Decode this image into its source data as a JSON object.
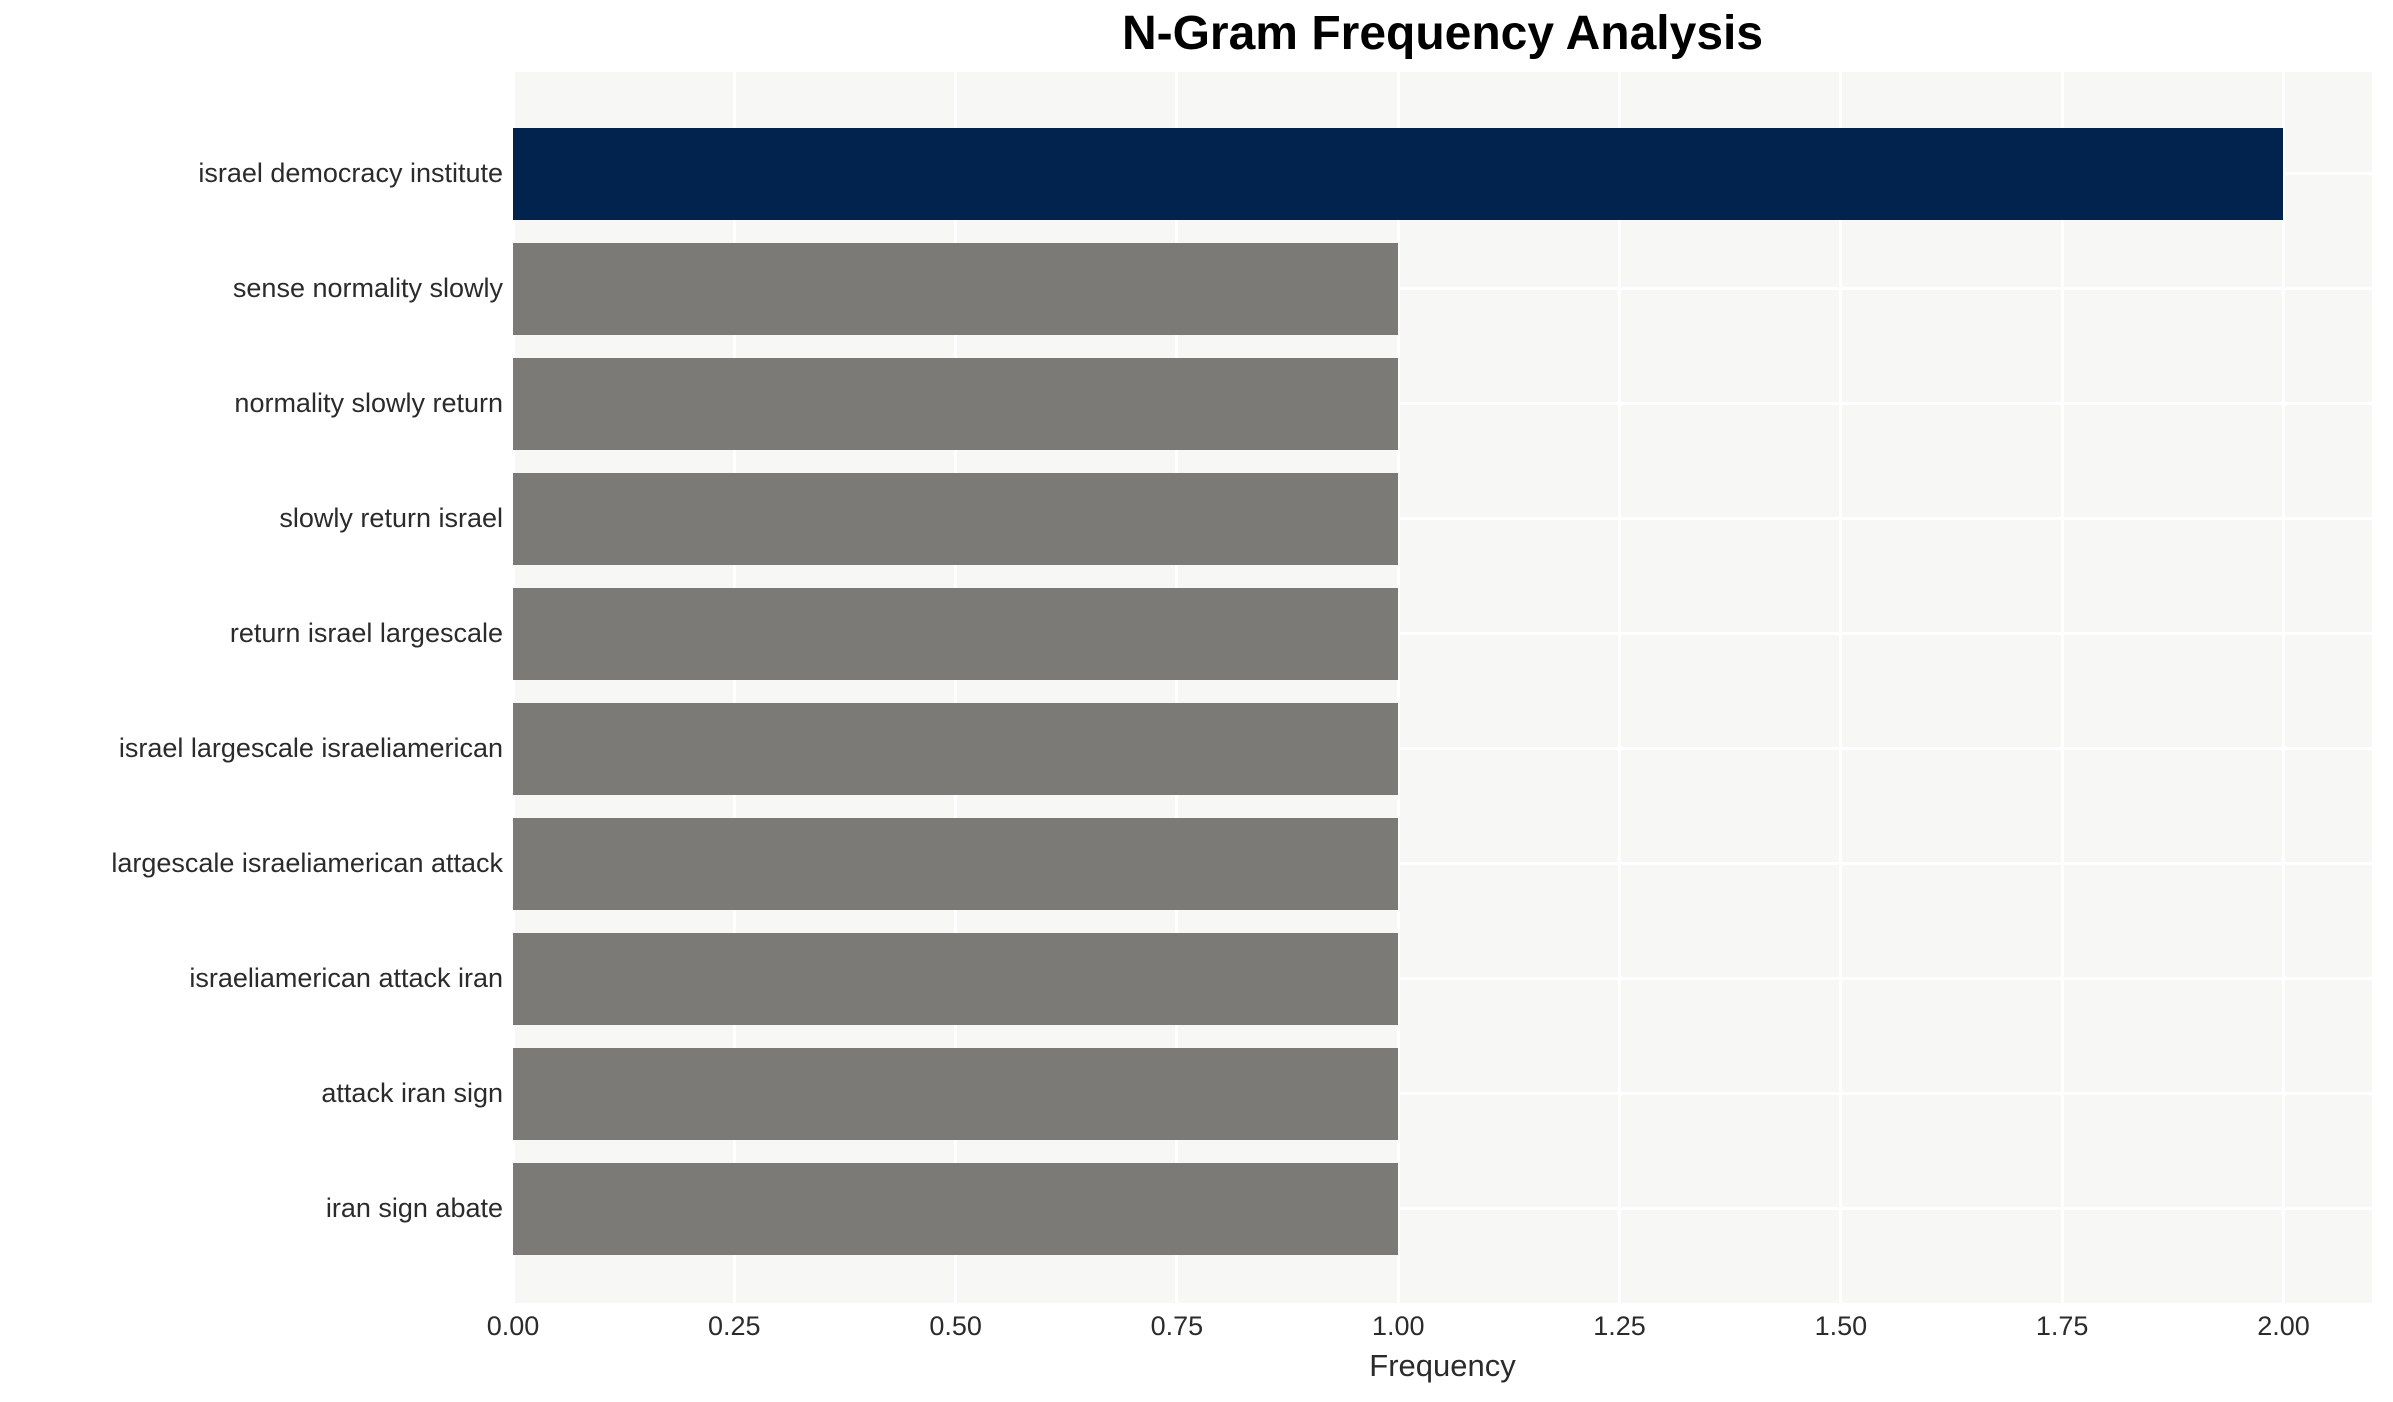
{
  "title": "N-Gram Frequency Analysis",
  "colors": {
    "highlight_bar": "#02234e",
    "default_bar": "#7b7a77",
    "plot_background": "#f7f7f6",
    "gridline": "#ffffff",
    "text": "#2b2b2b",
    "title_text": "#000000"
  },
  "chart_data": {
    "type": "bar",
    "orientation": "horizontal",
    "title": "N-Gram Frequency Analysis",
    "xlabel": "Frequency",
    "ylabel": "",
    "categories": [
      "israel democracy institute",
      "sense normality slowly",
      "normality slowly return",
      "slowly return israel",
      "return israel largescale",
      "israel largescale israeliamerican",
      "largescale israeliamerican attack",
      "israeliamerican attack iran",
      "attack iran sign",
      "iran sign abate"
    ],
    "values": [
      2,
      1,
      1,
      1,
      1,
      1,
      1,
      1,
      1,
      1
    ],
    "bar_colors": [
      "#02234e",
      "#7b7a77",
      "#7b7a77",
      "#7b7a77",
      "#7b7a77",
      "#7b7a77",
      "#7b7a77",
      "#7b7a77",
      "#7b7a77",
      "#7b7a77"
    ],
    "xtick_labels": [
      "0.00",
      "0.25",
      "0.50",
      "0.75",
      "1.00",
      "1.25",
      "1.50",
      "1.75",
      "2.00"
    ],
    "xtick_values": [
      0,
      0.25,
      0.5,
      0.75,
      1.0,
      1.25,
      1.5,
      1.75,
      2.0
    ],
    "xlim": [
      0,
      2.1
    ],
    "grid": true,
    "legend": false
  }
}
